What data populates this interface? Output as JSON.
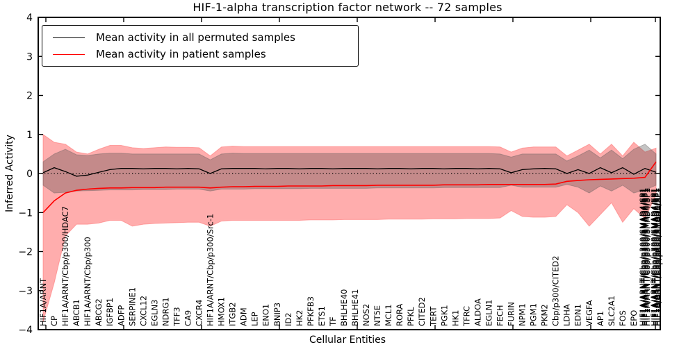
{
  "title": "HIF-1-alpha transcription factor network -- 72 samples",
  "y_axis": {
    "label": "Inferred Activity",
    "ticks": [
      4,
      3,
      2,
      1,
      0,
      -1,
      -2,
      -3,
      -4
    ],
    "lim": [
      -4,
      4
    ]
  },
  "x_axis": {
    "label": "Cellular Entities"
  },
  "legend": {
    "entries": [
      {
        "label": "Mean activity in all permuted samples",
        "color": "#000000"
      },
      {
        "label": "Mean activity in patient samples",
        "color": "#ff0000"
      }
    ]
  },
  "colors": {
    "background": "#ffffff",
    "axis": "#000000",
    "permuted_line": "#000000",
    "patient_line": "#ff0000",
    "patient_band_fill": "#ff0000",
    "permuted_band_fill": "#3c3c3c",
    "zero_line": "#000000"
  },
  "chart_data": {
    "type": "line",
    "title": "HIF-1-alpha transcription factor network -- 72 samples",
    "xlabel": "Cellular Entities",
    "ylabel": "Inferred Activity",
    "ylim": [
      -4,
      4
    ],
    "zero_line": "dotted horizontal line at y=0",
    "legend_position": "upper left",
    "categories": [
      "HIF1A/ARNT",
      "CP",
      "HIF1A/ARNT/Cbp/p300/HDAC7",
      "ABCB1",
      "HIF1A/ARNT/Cbp/p300",
      "ABCG2",
      "IGFBP1",
      "ADFP",
      "SERPINE1",
      "CXCL12",
      "EGLN3",
      "NDRG1",
      "TFF3",
      "CA9",
      "CXCR4",
      "HIF1A/ARNT/Cbp/p300/Src-1",
      "HMOX1",
      "ITGB2",
      "ADM",
      "LEP",
      "ENO1",
      "BNIP3",
      "ID2",
      "HK2",
      "PFKFB3",
      "ETS1",
      "TF",
      "BHLHE40",
      "BHLHE41",
      "NOS2",
      "NT5E",
      "MCL1",
      "RORA",
      "PFKL",
      "CITED2",
      "TERT",
      "PGK1",
      "HK1",
      "TFRC",
      "ALDOA",
      "EGLN1",
      "FECH",
      "FURIN",
      "NPM1",
      "PGM1",
      "PKM2",
      "Cbp/p300/CITED2",
      "LDHA",
      "EDN1",
      "VEGFA",
      "AP1",
      "SLC2A1",
      "FOS",
      "EPO",
      "HIF1A/ARNT/Cbp/p300/SMAD4/SP1",
      "HIF1A/ARNT/Cbp/p300/SMAD4/SP1"
    ],
    "end_cluster": {
      "readable_label": "HIF1A/ARNT/Cbp/p300/SMAD4/SP1",
      "note": "several x-axis labels overlap into an unreadable black cluster at the right edge",
      "overlap_layers": 5
    },
    "series": [
      {
        "name": "Mean activity in all permuted samples",
        "color": "#000000",
        "values": [
          0.02,
          0.15,
          0.05,
          -0.07,
          -0.04,
          0.03,
          0.1,
          0.13,
          0.13,
          0.12,
          0.13,
          0.13,
          0.12,
          0.13,
          0.12,
          0.0,
          0.12,
          0.13,
          0.13,
          0.13,
          0.12,
          0.13,
          0.13,
          0.12,
          0.13,
          0.13,
          0.12,
          0.13,
          0.13,
          0.13,
          0.12,
          0.13,
          0.13,
          0.12,
          0.13,
          0.13,
          0.12,
          0.13,
          0.13,
          0.12,
          0.13,
          0.12,
          0.02,
          0.1,
          0.12,
          0.13,
          0.12,
          0.0,
          0.1,
          0.0,
          0.15,
          0.02,
          0.15,
          -0.02,
          0.13,
          0.03
        ]
      },
      {
        "name": "Mean activity in patient samples",
        "color": "#ff0000",
        "values": [
          -1.0,
          -0.7,
          -0.5,
          -0.43,
          -0.4,
          -0.38,
          -0.37,
          -0.37,
          -0.36,
          -0.36,
          -0.36,
          -0.35,
          -0.35,
          -0.35,
          -0.35,
          -0.37,
          -0.35,
          -0.34,
          -0.34,
          -0.33,
          -0.33,
          -0.33,
          -0.32,
          -0.32,
          -0.32,
          -0.32,
          -0.31,
          -0.31,
          -0.31,
          -0.31,
          -0.3,
          -0.3,
          -0.3,
          -0.3,
          -0.3,
          -0.3,
          -0.29,
          -0.29,
          -0.29,
          -0.29,
          -0.28,
          -0.28,
          -0.28,
          -0.28,
          -0.28,
          -0.28,
          -0.27,
          -0.2,
          -0.18,
          -0.16,
          -0.15,
          -0.14,
          -0.13,
          -0.12,
          -0.1,
          0.3
        ]
      }
    ],
    "bands": [
      {
        "name": "patient samples band",
        "fill": "#ff0000",
        "opacity": 0.32,
        "upper": [
          1.0,
          0.8,
          0.75,
          0.55,
          0.5,
          0.62,
          0.72,
          0.72,
          0.66,
          0.64,
          0.66,
          0.68,
          0.67,
          0.67,
          0.66,
          0.45,
          0.68,
          0.7,
          0.69,
          0.69,
          0.69,
          0.69,
          0.69,
          0.69,
          0.69,
          0.69,
          0.69,
          0.69,
          0.69,
          0.69,
          0.69,
          0.69,
          0.69,
          0.69,
          0.69,
          0.69,
          0.69,
          0.69,
          0.69,
          0.69,
          0.69,
          0.68,
          0.55,
          0.65,
          0.68,
          0.68,
          0.68,
          0.45,
          0.6,
          0.75,
          0.5,
          0.75,
          0.45,
          0.8,
          0.55,
          0.65
        ],
        "lower": [
          -3.8,
          -2.8,
          -1.6,
          -1.3,
          -1.3,
          -1.27,
          -1.2,
          -1.2,
          -1.35,
          -1.3,
          -1.28,
          -1.27,
          -1.26,
          -1.25,
          -1.25,
          -1.35,
          -1.22,
          -1.2,
          -1.2,
          -1.2,
          -1.2,
          -1.2,
          -1.2,
          -1.2,
          -1.19,
          -1.19,
          -1.19,
          -1.18,
          -1.18,
          -1.18,
          -1.18,
          -1.17,
          -1.17,
          -1.17,
          -1.17,
          -1.16,
          -1.16,
          -1.16,
          -1.15,
          -1.15,
          -1.15,
          -1.14,
          -0.95,
          -1.1,
          -1.12,
          -1.12,
          -1.1,
          -0.8,
          -1.0,
          -1.35,
          -1.05,
          -0.75,
          -1.25,
          -0.9,
          -1.15,
          -0.55
        ]
      },
      {
        "name": "permuted samples band",
        "fill": "#3c3c3c",
        "opacity": 0.3,
        "upper": [
          0.3,
          0.5,
          0.62,
          0.48,
          0.46,
          0.5,
          0.52,
          0.52,
          0.5,
          0.5,
          0.5,
          0.5,
          0.5,
          0.5,
          0.5,
          0.35,
          0.5,
          0.52,
          0.51,
          0.51,
          0.51,
          0.51,
          0.51,
          0.51,
          0.51,
          0.51,
          0.51,
          0.51,
          0.51,
          0.51,
          0.51,
          0.51,
          0.51,
          0.51,
          0.51,
          0.51,
          0.51,
          0.51,
          0.51,
          0.51,
          0.51,
          0.5,
          0.42,
          0.5,
          0.5,
          0.5,
          0.5,
          0.32,
          0.45,
          0.6,
          0.4,
          0.6,
          0.38,
          0.62,
          0.75,
          0.5
        ],
        "lower": [
          -0.3,
          -0.5,
          -0.48,
          -0.45,
          -0.44,
          -0.43,
          -0.42,
          -0.42,
          -0.42,
          -0.41,
          -0.41,
          -0.41,
          -0.4,
          -0.4,
          -0.4,
          -0.45,
          -0.4,
          -0.4,
          -0.4,
          -0.39,
          -0.39,
          -0.39,
          -0.39,
          -0.39,
          -0.38,
          -0.38,
          -0.38,
          -0.38,
          -0.38,
          -0.38,
          -0.37,
          -0.37,
          -0.37,
          -0.37,
          -0.37,
          -0.37,
          -0.36,
          -0.36,
          -0.36,
          -0.36,
          -0.36,
          -0.36,
          -0.3,
          -0.35,
          -0.35,
          -0.35,
          -0.35,
          -0.28,
          -0.35,
          -0.5,
          -0.32,
          -0.45,
          -0.3,
          -0.5,
          -0.42,
          -0.3
        ]
      }
    ]
  }
}
